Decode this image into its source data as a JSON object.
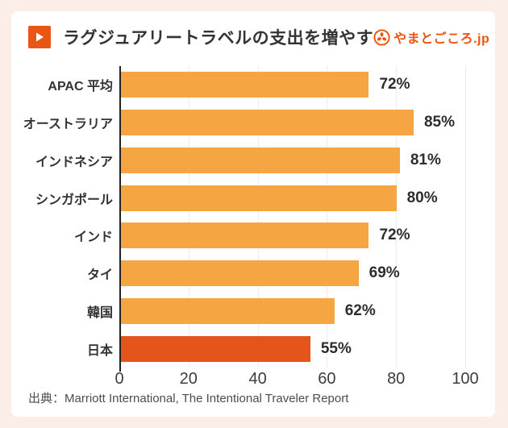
{
  "header": {
    "title": "ラグジュアリートラベルの支出を増やす",
    "logo_text": "やまとごころ.jp"
  },
  "footer": {
    "source": "出典：Marriott International, The Intentional Traveler Report"
  },
  "icons": {
    "play_icon": "play-triangle",
    "logo_icon": "tomoe-circle-emblem"
  },
  "colors": {
    "background": "#FBEEE7",
    "card": "#FFFFFF",
    "accent_orange": "#E95513",
    "bar_orange": "#F5A643",
    "highlight_orange": "#E4541B",
    "gridline": "#ECECEC",
    "axis": "#222222",
    "text_dark": "#333333"
  },
  "chart_data": {
    "type": "bar",
    "orientation": "horizontal",
    "title": "ラグジュアリートラベルの支出を増やす",
    "categories": [
      "APAC 平均",
      "オーストラリア",
      "インドネシア",
      "シンガポール",
      "インド",
      "タイ",
      "韓国",
      "日本"
    ],
    "values": [
      72,
      85,
      81,
      80,
      72,
      69,
      62,
      55
    ],
    "value_labels": [
      "72%",
      "85%",
      "81%",
      "80%",
      "72%",
      "69%",
      "62%",
      "55%"
    ],
    "x_ticks": [
      0,
      20,
      40,
      60,
      80,
      100
    ],
    "xlim": [
      0,
      100
    ],
    "grid": true,
    "legend": false,
    "highlight_index": 7,
    "highlight_category": "日本",
    "bar_color": "#F5A643",
    "highlight_color": "#E4541B",
    "source": "出典：Marriott International, The Intentional Traveler Report"
  }
}
